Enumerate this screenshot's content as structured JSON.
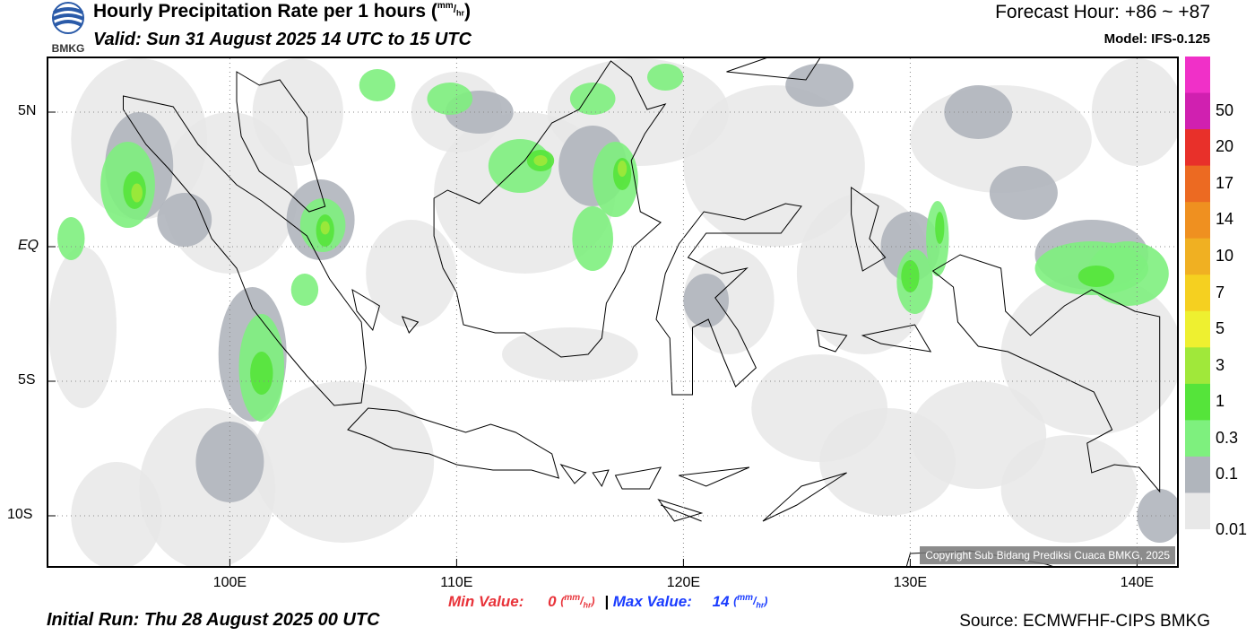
{
  "header": {
    "title_main": "Hourly Precipitation Rate per 1 hours (",
    "title_unit_num": "mm",
    "title_unit_den": "hr",
    "title_close": ")",
    "valid": "Valid: Sun 31 August 2025 14 UTC to 15 UTC",
    "forecast_hour": "Forecast Hour: +86 ~ +87",
    "model": "Model: IFS-0.125",
    "logo_text": "BMKG"
  },
  "map": {
    "lon_range": [
      92,
      142
    ],
    "lat_range": [
      -12.0,
      7.0
    ],
    "lat_labels": [
      {
        "lat": 5,
        "text": "5N"
      },
      {
        "lat": 0,
        "text": "EQ"
      },
      {
        "lat": -5,
        "text": "5S"
      },
      {
        "lat": -10,
        "text": "10S"
      }
    ],
    "lon_labels": [
      {
        "lon": 100,
        "text": "100E"
      },
      {
        "lon": 110,
        "text": "110E"
      },
      {
        "lon": 120,
        "text": "120E"
      },
      {
        "lon": 130,
        "text": "130E"
      },
      {
        "lon": 140,
        "text": "140E"
      }
    ],
    "copyright": "Copyright Sub Bidang Prediksi Cuaca BMKG, 2025"
  },
  "colorbar": {
    "levels": [
      "0.01",
      "0.1",
      "0.3",
      "1",
      "3",
      "5",
      "7",
      "10",
      "14",
      "17",
      "20",
      "50"
    ],
    "colors": [
      "#e8e8e8",
      "#b0b5bc",
      "#7ef07e",
      "#55e43a",
      "#a0e83a",
      "#eef030",
      "#f5d020",
      "#f0b022",
      "#ef9020",
      "#ec6a22",
      "#e8302a",
      "#d020b0",
      "#f030c8"
    ]
  },
  "footer": {
    "min_label": "Min Value:",
    "min_value": "0",
    "max_label": "Max Value:",
    "max_value": "14",
    "unit_num": "mm",
    "unit_den": "hr",
    "separator": "|",
    "initial_run": "Initial Run: Thu 28 August 2025 00 UTC",
    "source": "Source: ECMWFHF-CIPS BMKG"
  }
}
